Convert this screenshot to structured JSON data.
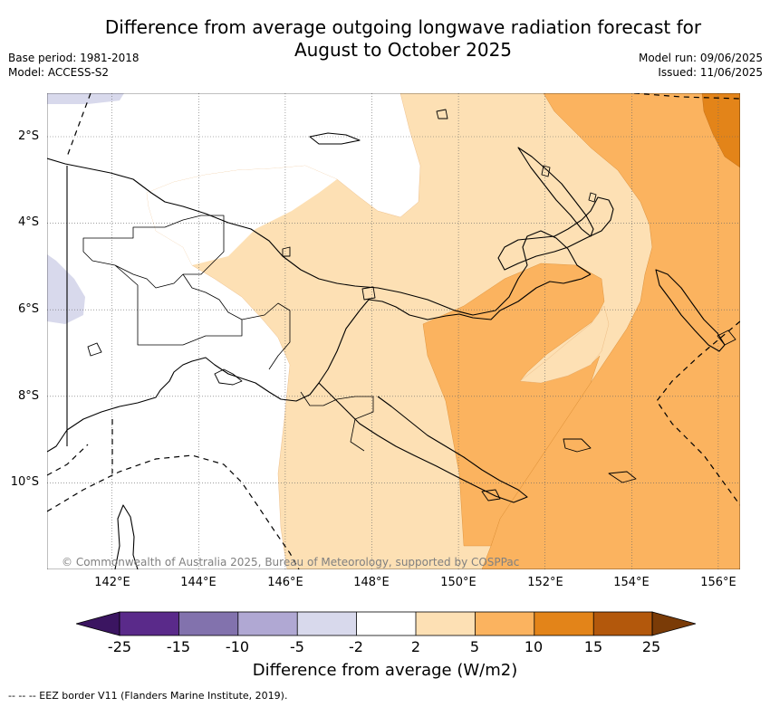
{
  "title": {
    "line1": "Difference from average outgoing longwave radiation forecast for",
    "line2": "August to October 2025"
  },
  "meta_left": {
    "base_period": "Base period: 1981-2018",
    "model": "Model: ACCESS-S2"
  },
  "meta_right": {
    "model_run": "Model run: 09/06/2025",
    "issued": "Issued: 11/06/2025"
  },
  "map": {
    "latitudes": [
      "2°S",
      "4°S",
      "6°S",
      "8°S",
      "10°S"
    ],
    "longitudes": [
      "142°E",
      "144°E",
      "146°E",
      "148°E",
      "150°E",
      "152°E",
      "154°E",
      "156°E"
    ],
    "lon_range": [
      140.2,
      156.2
    ],
    "lat_range": [
      -12.0,
      -1.0
    ],
    "copyright": "© Commonwealth of Australia 2025, Bureau of Meteorology, supported by COSPPac"
  },
  "colorbar": {
    "ticks": [
      "-25",
      "-15",
      "-10",
      "-5",
      "-2",
      "2",
      "5",
      "10",
      "15",
      "25"
    ],
    "colors": [
      "#3b1561",
      "#5a2a8a",
      "#8272ad",
      "#b0a8d3",
      "#d8d9ec",
      "#ffffff",
      "#fde0b4",
      "#fbb35f",
      "#e38419",
      "#b3580c",
      "#7a3b07"
    ],
    "label": "Difference from average (W/m2)"
  },
  "footer": "-- -- -- EEZ border V11 (Flanders Marine Institute, 2019)."
}
